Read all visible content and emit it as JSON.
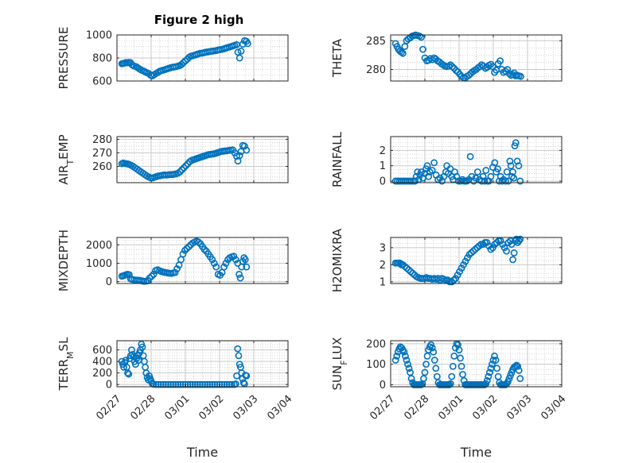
{
  "title": "Figure 2 high",
  "colors": {
    "marker": "#0072BD",
    "axis": "#262626",
    "grid": "#c9c9c9",
    "plot_bg": "#ffffff"
  },
  "chart_data": [
    {
      "type": "scatter",
      "name": "PRESSURE",
      "title": "Figure 2 high",
      "xlabel": "",
      "ylabel": "PRESSURE",
      "ylim": [
        600,
        1000
      ],
      "yticks": [
        600,
        800,
        1000
      ],
      "xlim": [
        0,
        7
      ],
      "xticks": [],
      "grid": true,
      "x": [
        0.2,
        0.25,
        0.3,
        0.36,
        0.42,
        0.48,
        0.55,
        0.62,
        0.7,
        0.78,
        0.85,
        0.92,
        1.0,
        1.08,
        1.15,
        1.22,
        1.3,
        1.38,
        1.45,
        1.52,
        1.6,
        1.68,
        1.75,
        1.82,
        1.9,
        1.98,
        2.05,
        2.12,
        2.2,
        2.28,
        2.35,
        2.42,
        2.5,
        2.58,
        2.65,
        2.72,
        2.8,
        2.88,
        2.95,
        3.02,
        3.1,
        3.18,
        3.25,
        3.32,
        3.4,
        3.48,
        3.55,
        3.62,
        3.7,
        3.78,
        3.85,
        3.92,
        4.0,
        4.08,
        4.15,
        4.22,
        4.3,
        4.38,
        4.45,
        4.52,
        4.6,
        4.68,
        4.75,
        4.82,
        4.9,
        4.95,
        5.02,
        5.08,
        5.15,
        5.22,
        5.3,
        5.35
      ],
      "y": [
        750,
        752,
        755,
        760,
        758,
        762,
        760,
        740,
        730,
        725,
        715,
        705,
        695,
        688,
        680,
        672,
        665,
        650,
        645,
        655,
        665,
        675,
        685,
        690,
        695,
        700,
        705,
        710,
        715,
        720,
        722,
        725,
        730,
        735,
        745,
        760,
        775,
        790,
        805,
        815,
        820,
        825,
        830,
        835,
        840,
        842,
        845,
        850,
        852,
        855,
        858,
        860,
        862,
        865,
        870,
        872,
        875,
        880,
        885,
        890,
        895,
        900,
        905,
        910,
        915,
        850,
        800,
        860,
        920,
        950,
        945,
        925
      ]
    },
    {
      "type": "scatter",
      "name": "THETA",
      "xlabel": "",
      "ylabel": "THETA",
      "ylim": [
        278,
        286
      ],
      "yticks": [
        280,
        285
      ],
      "xlim": [
        0,
        7
      ],
      "xticks": [],
      "grid": true,
      "x": [
        0.2,
        0.26,
        0.32,
        0.38,
        0.44,
        0.5,
        0.58,
        0.65,
        0.72,
        0.8,
        0.88,
        0.95,
        1.02,
        1.1,
        1.18,
        1.25,
        1.32,
        1.4,
        1.48,
        1.55,
        1.62,
        1.7,
        1.78,
        1.85,
        1.92,
        2.0,
        2.08,
        2.15,
        2.22,
        2.3,
        2.38,
        2.45,
        2.52,
        2.6,
        2.68,
        2.75,
        2.82,
        2.9,
        2.98,
        3.05,
        3.12,
        3.2,
        3.28,
        3.35,
        3.42,
        3.5,
        3.58,
        3.65,
        3.72,
        3.8,
        3.88,
        3.95,
        4.02,
        4.1,
        4.18,
        4.25,
        4.32,
        4.4,
        4.48,
        4.55,
        4.62,
        4.7,
        4.78,
        4.85,
        4.92,
        5.0,
        5.05,
        5.12,
        5.18,
        5.25,
        5.32
      ],
      "y": [
        284.5,
        284.0,
        283.5,
        283.2,
        283.0,
        282.8,
        284.0,
        285.0,
        285.3,
        285.5,
        285.8,
        285.9,
        286.0,
        285.9,
        285.8,
        285.6,
        283.5,
        282.0,
        281.5,
        281.6,
        281.9,
        281.7,
        282.0,
        281.8,
        281.5,
        281.3,
        281.0,
        280.8,
        280.6,
        280.5,
        280.6,
        280.8,
        280.5,
        280.2,
        279.8,
        279.6,
        279.2,
        278.8,
        278.6,
        278.5,
        278.8,
        279.0,
        279.3,
        279.6,
        279.8,
        280.0,
        280.3,
        280.5,
        280.8,
        280.6,
        280.2,
        280.4,
        280.7,
        280.9,
        280.5,
        279.5,
        279.9,
        281.0,
        281.5,
        280.0,
        279.5,
        279.7,
        280.0,
        279.3,
        279.0,
        279.1,
        279.4,
        278.9,
        279.0,
        278.9,
        278.8
      ]
    },
    {
      "type": "scatter",
      "name": "AIR_TEMP",
      "xlabel": "",
      "ylabel": "AIR_TEMP",
      "ylim": [
        248,
        282
      ],
      "yticks": [
        260,
        270,
        280
      ],
      "xlim": [
        0,
        7
      ],
      "xticks": [],
      "grid": true,
      "x": [
        0.2,
        0.26,
        0.32,
        0.38,
        0.44,
        0.5,
        0.58,
        0.66,
        0.74,
        0.82,
        0.9,
        0.98,
        1.06,
        1.14,
        1.22,
        1.3,
        1.38,
        1.46,
        1.54,
        1.62,
        1.7,
        1.78,
        1.86,
        1.94,
        2.02,
        2.1,
        2.18,
        2.26,
        2.34,
        2.42,
        2.5,
        2.58,
        2.66,
        2.74,
        2.82,
        2.9,
        2.98,
        3.06,
        3.14,
        3.22,
        3.3,
        3.38,
        3.46,
        3.54,
        3.62,
        3.7,
        3.78,
        3.86,
        3.94,
        4.02,
        4.1,
        4.18,
        4.26,
        4.34,
        4.42,
        4.5,
        4.58,
        4.66,
        4.74,
        4.82,
        4.9,
        4.95,
        5.02,
        5.08,
        5.15,
        5.22,
        5.3
      ],
      "y": [
        262.0,
        262.5,
        262.2,
        262.0,
        261.8,
        261.5,
        260.8,
        260.0,
        259.0,
        258.0,
        257.0,
        256.0,
        255.0,
        254.0,
        253.0,
        252.2,
        251.5,
        251.5,
        252.0,
        252.5,
        253.0,
        253.2,
        253.5,
        253.8,
        253.6,
        253.8,
        254.0,
        254.0,
        254.2,
        254.5,
        255.0,
        256.0,
        257.5,
        259.0,
        260.5,
        262.0,
        263.5,
        264.5,
        265.0,
        265.5,
        266.0,
        266.5,
        267.0,
        267.5,
        268.0,
        268.5,
        268.8,
        269.0,
        269.2,
        269.5,
        270.0,
        270.5,
        271.0,
        271.2,
        271.4,
        271.5,
        271.8,
        272.0,
        272.2,
        270.0,
        267.5,
        264.0,
        268.0,
        271.0,
        275.5,
        275.0,
        272.0
      ]
    },
    {
      "type": "scatter",
      "name": "RAINFALL",
      "xlabel": "",
      "ylabel": "RAINFALL",
      "ylim": [
        -0.1,
        2.9
      ],
      "yticks": [
        0,
        1,
        2
      ],
      "xlim": [
        0,
        7
      ],
      "xticks": [],
      "grid": true,
      "x": [
        0.2,
        0.28,
        0.36,
        0.44,
        0.52,
        0.6,
        0.68,
        0.76,
        0.84,
        0.92,
        1.0,
        1.05,
        1.1,
        1.15,
        1.2,
        1.25,
        1.32,
        1.4,
        1.45,
        1.5,
        1.55,
        1.6,
        1.7,
        1.78,
        1.86,
        1.94,
        2.02,
        2.1,
        2.18,
        2.26,
        2.3,
        2.36,
        2.44,
        2.5,
        2.56,
        2.62,
        2.7,
        2.78,
        2.86,
        2.94,
        3.0,
        3.06,
        3.12,
        3.2,
        3.26,
        3.32,
        3.4,
        3.48,
        3.56,
        3.64,
        3.72,
        3.78,
        3.84,
        3.9,
        3.96,
        4.02,
        4.1,
        4.18,
        4.26,
        4.32,
        4.38,
        4.44,
        4.5,
        4.56,
        4.62,
        4.7,
        4.76,
        4.82,
        4.88,
        4.92,
        4.96,
        5.0,
        5.04,
        5.08,
        5.12,
        5.18,
        5.24,
        5.3
      ],
      "y": [
        0,
        0,
        0,
        0,
        0,
        0,
        0,
        0,
        0,
        0,
        0,
        0.3,
        0.6,
        0.1,
        0.4,
        0.6,
        0.2,
        0.5,
        0.8,
        1.0,
        0.3,
        0.6,
        0.7,
        1.2,
        0.4,
        0.1,
        0.2,
        0.0,
        0.3,
        0.6,
        1.0,
        0.5,
        0.8,
        0.3,
        0.1,
        0.6,
        0.3,
        0.0,
        0.0,
        0.1,
        0.0,
        0.0,
        0.0,
        0.1,
        1.6,
        0.3,
        0.0,
        0.2,
        0.6,
        0.1,
        0.0,
        0.3,
        0.0,
        0.7,
        0.0,
        0.0,
        0.3,
        0.9,
        1.2,
        0.6,
        0.8,
        0.0,
        0.3,
        0.0,
        0.1,
        0.0,
        0.6,
        0.0,
        1.3,
        1.0,
        0.3,
        0.6,
        0.2,
        2.3,
        2.5,
        1.3,
        1.0,
        0.0
      ]
    },
    {
      "type": "scatter",
      "name": "MIXDEPTH",
      "xlabel": "",
      "ylabel": "MIXDEPTH",
      "ylim": [
        -100,
        2400
      ],
      "yticks": [
        0,
        1000,
        2000
      ],
      "xlim": [
        0,
        7
      ],
      "xticks": [],
      "grid": true,
      "x": [
        0.2,
        0.26,
        0.32,
        0.38,
        0.44,
        0.5,
        0.56,
        0.62,
        0.7,
        0.78,
        0.86,
        0.94,
        1.02,
        1.1,
        1.18,
        1.26,
        1.34,
        1.42,
        1.5,
        1.58,
        1.66,
        1.74,
        1.82,
        1.9,
        1.98,
        2.06,
        2.14,
        2.22,
        2.3,
        2.38,
        2.46,
        2.54,
        2.62,
        2.7,
        2.78,
        2.86,
        2.94,
        3.02,
        3.1,
        3.18,
        3.26,
        3.34,
        3.42,
        3.5,
        3.58,
        3.66,
        3.74,
        3.82,
        3.9,
        3.98,
        4.06,
        4.14,
        4.22,
        4.3,
        4.38,
        4.46,
        4.54,
        4.62,
        4.7,
        4.78,
        4.86,
        4.94,
        5.0,
        5.05,
        5.1,
        5.15,
        5.2,
        5.25,
        5.3
      ],
      "y": [
        300,
        320,
        350,
        380,
        400,
        380,
        150,
        120,
        100,
        90,
        80,
        70,
        50,
        20,
        30,
        50,
        200,
        300,
        400,
        600,
        650,
        600,
        550,
        520,
        500,
        480,
        460,
        450,
        470,
        500,
        700,
        900,
        1200,
        1500,
        1700,
        1800,
        1900,
        2000,
        2100,
        2150,
        2200,
        2150,
        2050,
        1900,
        1750,
        1650,
        1500,
        1350,
        1200,
        1000,
        800,
        400,
        350,
        500,
        800,
        1000,
        1200,
        1300,
        1350,
        1380,
        1200,
        1000,
        400,
        200,
        800,
        1100,
        1300,
        1200,
        800
      ]
    },
    {
      "type": "scatter",
      "name": "H2OMIXRA",
      "xlabel": "",
      "ylabel": "H2OMIXRA",
      "ylim": [
        0.9,
        3.6
      ],
      "yticks": [
        1,
        2,
        3
      ],
      "xlim": [
        0,
        7
      ],
      "xticks": [],
      "grid": true,
      "x": [
        0.2,
        0.26,
        0.32,
        0.38,
        0.44,
        0.5,
        0.58,
        0.66,
        0.74,
        0.82,
        0.9,
        0.98,
        1.06,
        1.14,
        1.22,
        1.3,
        1.38,
        1.46,
        1.54,
        1.62,
        1.7,
        1.78,
        1.86,
        1.94,
        2.02,
        2.1,
        2.18,
        2.26,
        2.34,
        2.42,
        2.5,
        2.58,
        2.66,
        2.74,
        2.82,
        2.9,
        2.98,
        3.06,
        3.14,
        3.22,
        3.3,
        3.38,
        3.46,
        3.54,
        3.62,
        3.7,
        3.78,
        3.86,
        3.94,
        4.02,
        4.1,
        4.18,
        4.26,
        4.34,
        4.42,
        4.5,
        4.58,
        4.66,
        4.74,
        4.82,
        4.9,
        4.95,
        5.0,
        5.05,
        5.1,
        5.15,
        5.2,
        5.25,
        5.3
      ],
      "y": [
        2.1,
        2.1,
        2.1,
        2.1,
        2.0,
        2.0,
        1.9,
        1.8,
        1.7,
        1.6,
        1.5,
        1.4,
        1.3,
        1.25,
        1.2,
        1.2,
        1.2,
        1.25,
        1.2,
        1.2,
        1.15,
        1.2,
        1.15,
        1.2,
        1.1,
        1.2,
        1.15,
        1.1,
        1.1,
        1.0,
        1.0,
        1.1,
        1.2,
        1.4,
        1.6,
        1.8,
        2.0,
        2.2,
        2.4,
        2.6,
        2.7,
        2.8,
        2.9,
        3.0,
        3.1,
        3.2,
        3.2,
        3.3,
        3.3,
        3.1,
        2.9,
        3.0,
        3.2,
        3.3,
        3.4,
        3.4,
        3.2,
        3.0,
        2.8,
        3.3,
        3.4,
        3.2,
        2.3,
        2.7,
        3.4,
        3.5,
        3.3,
        3.4,
        3.5
      ]
    },
    {
      "type": "scatter",
      "name": "TERR_MSL",
      "xlabel": "Time",
      "ylabel": "TERR_MSL",
      "ylim": [
        -40,
        760
      ],
      "yticks": [
        0,
        200,
        400,
        600
      ],
      "xlim": [
        0,
        7
      ],
      "xticks": [
        "02/27",
        "02/28",
        "03/01",
        "03/02",
        "03/03",
        "03/04"
      ],
      "grid": true,
      "x": [
        0.2,
        0.24,
        0.28,
        0.32,
        0.36,
        0.4,
        0.44,
        0.48,
        0.52,
        0.56,
        0.6,
        0.64,
        0.68,
        0.72,
        0.76,
        0.8,
        0.84,
        0.88,
        0.92,
        0.96,
        1.0,
        1.04,
        1.08,
        1.12,
        1.16,
        1.2,
        1.24,
        1.28,
        1.32,
        1.36,
        1.4,
        1.44,
        1.5,
        1.6,
        1.7,
        1.8,
        1.9,
        2.0,
        2.1,
        2.2,
        2.3,
        2.4,
        2.5,
        2.6,
        2.7,
        2.8,
        2.9,
        3.0,
        3.1,
        3.2,
        3.3,
        3.4,
        3.5,
        3.6,
        3.7,
        3.8,
        3.9,
        4.0,
        4.1,
        4.2,
        4.3,
        4.4,
        4.5,
        4.6,
        4.7,
        4.8,
        4.86,
        4.9,
        4.94,
        4.98,
        5.02,
        5.06,
        5.1,
        5.14,
        5.18,
        5.22,
        5.26,
        5.3
      ],
      "y": [
        400,
        350,
        300,
        380,
        420,
        300,
        200,
        180,
        450,
        500,
        600,
        520,
        480,
        400,
        350,
        450,
        500,
        420,
        550,
        600,
        700,
        650,
        500,
        400,
        300,
        200,
        120,
        80,
        150,
        100,
        60,
        20,
        5,
        0,
        0,
        0,
        0,
        0,
        0,
        0,
        0,
        0,
        0,
        0,
        0,
        0,
        0,
        0,
        0,
        0,
        0,
        0,
        0,
        0,
        0,
        0,
        0,
        0,
        0,
        0,
        0,
        0,
        0,
        0,
        0,
        0,
        10,
        150,
        620,
        500,
        350,
        300,
        200,
        100,
        30,
        10,
        160,
        150
      ]
    },
    {
      "type": "scatter",
      "name": "SUN_FLUX",
      "xlabel": "Time",
      "ylabel": "SUN_FLUX",
      "ylim": [
        -10,
        215
      ],
      "yticks": [
        0,
        100,
        200
      ],
      "xlim": [
        0,
        7
      ],
      "xticks": [
        "02/27",
        "02/28",
        "03/01",
        "03/02",
        "03/03",
        "03/04"
      ],
      "grid": true,
      "x": [
        0.2,
        0.25,
        0.3,
        0.35,
        0.4,
        0.45,
        0.5,
        0.55,
        0.6,
        0.65,
        0.7,
        0.75,
        0.8,
        0.85,
        0.9,
        0.95,
        1.0,
        1.05,
        1.1,
        1.15,
        1.2,
        1.25,
        1.3,
        1.35,
        1.4,
        1.45,
        1.5,
        1.55,
        1.6,
        1.65,
        1.7,
        1.75,
        1.8,
        1.85,
        1.9,
        1.95,
        2.0,
        2.05,
        2.1,
        2.15,
        2.2,
        2.25,
        2.3,
        2.35,
        2.4,
        2.45,
        2.5,
        2.55,
        2.6,
        2.65,
        2.7,
        2.75,
        2.8,
        2.85,
        2.9,
        2.95,
        3.0,
        3.05,
        3.1,
        3.15,
        3.2,
        3.25,
        3.3,
        3.35,
        3.4,
        3.45,
        3.5,
        3.55,
        3.6,
        3.65,
        3.7,
        3.75,
        3.8,
        3.85,
        3.9,
        3.95,
        4.0,
        4.05,
        4.1,
        4.15,
        4.2,
        4.25,
        4.3,
        4.35,
        4.4,
        4.45,
        4.5,
        4.55,
        4.6,
        4.65,
        4.7,
        4.75,
        4.8,
        4.85,
        4.9,
        4.95,
        5.0,
        5.05,
        5.1,
        5.15,
        5.2,
        5.25,
        5.3
      ],
      "y": [
        120,
        140,
        160,
        175,
        185,
        180,
        170,
        160,
        140,
        120,
        100,
        80,
        60,
        30,
        10,
        0,
        0,
        0,
        0,
        0,
        0,
        0,
        5,
        30,
        60,
        100,
        140,
        170,
        185,
        195,
        180,
        160,
        120,
        80,
        40,
        10,
        0,
        0,
        0,
        0,
        0,
        0,
        0,
        0,
        0,
        5,
        40,
        90,
        140,
        180,
        200,
        195,
        170,
        130,
        90,
        50,
        20,
        0,
        0,
        0,
        0,
        0,
        0,
        0,
        0,
        0,
        0,
        0,
        0,
        0,
        0,
        0,
        0,
        0,
        5,
        20,
        40,
        60,
        80,
        100,
        120,
        140,
        120,
        80,
        40,
        10,
        0,
        0,
        0,
        0,
        0,
        5,
        15,
        30,
        45,
        60,
        75,
        85,
        90,
        95,
        90,
        70,
        30
      ]
    }
  ]
}
